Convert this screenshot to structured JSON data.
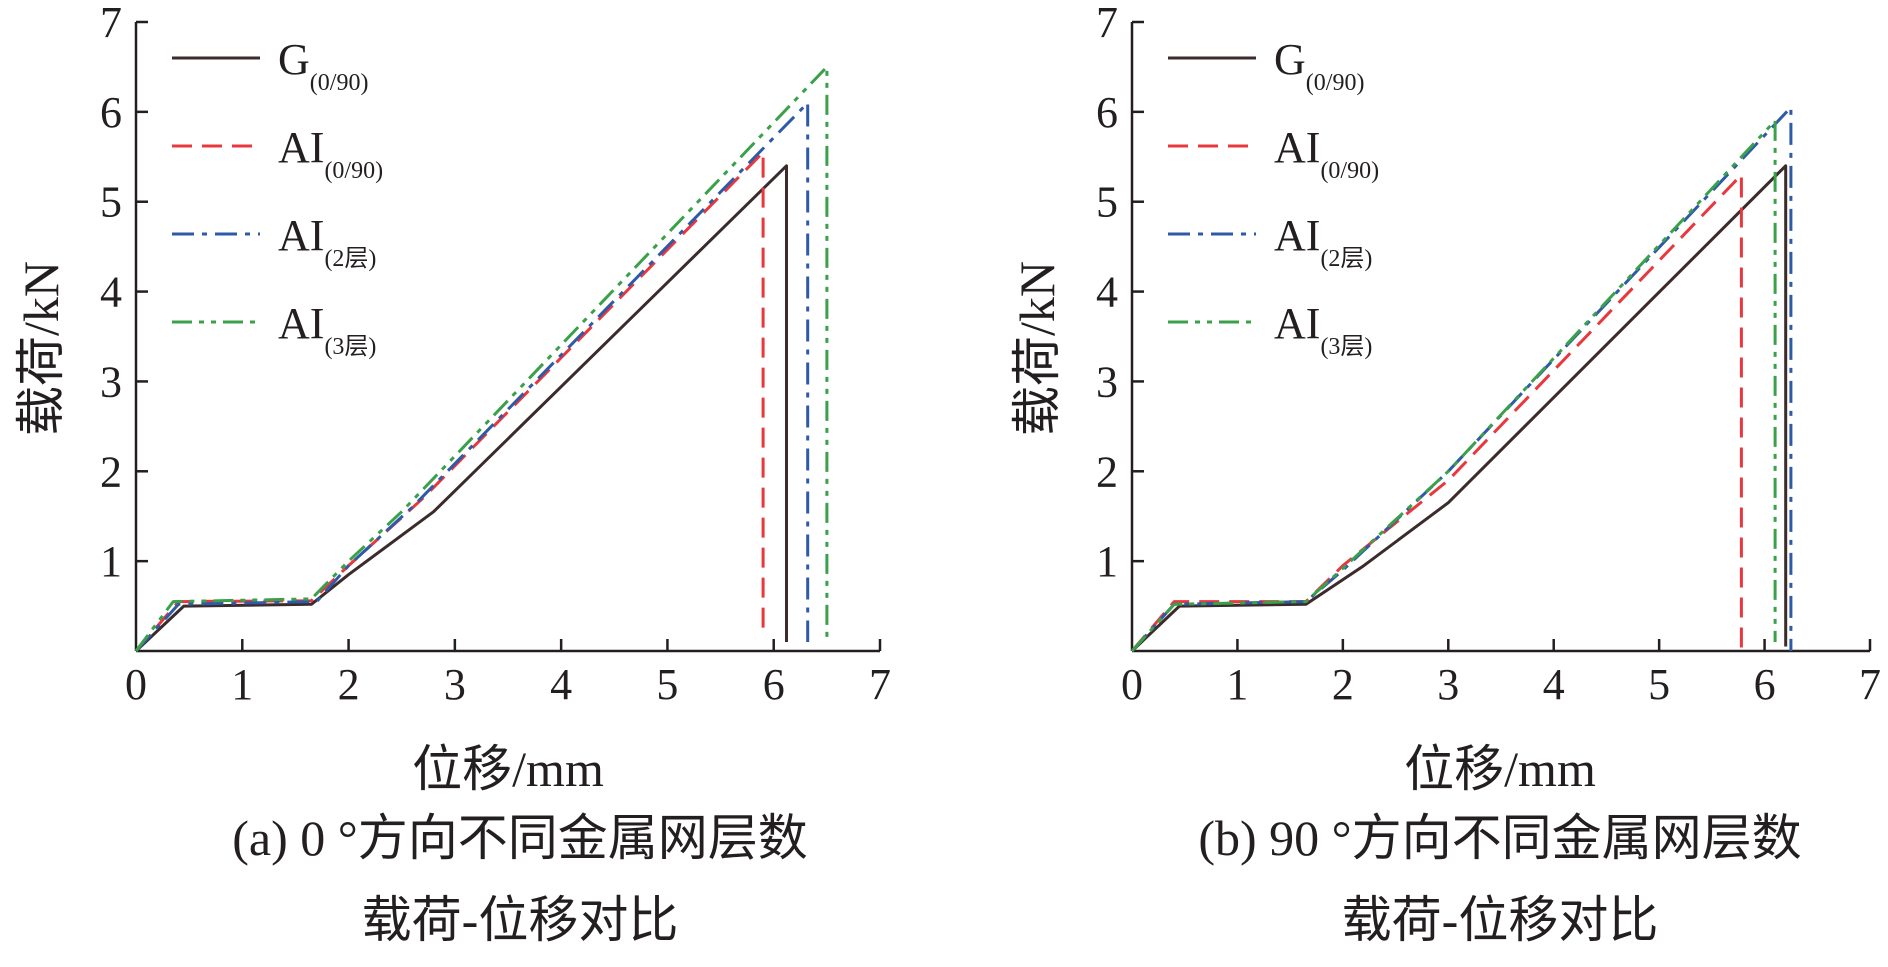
{
  "chart_data": [
    {
      "type": "line",
      "panel": "a",
      "caption_line1": "(a) 0 °方向不同金属网层数",
      "caption_line2": "载荷-位移对比",
      "xlabel": "位移/mm",
      "ylabel": "载荷/kN",
      "xlim": [
        0,
        7
      ],
      "ylim": [
        0,
        7
      ],
      "xticks": [
        "0",
        "1",
        "2",
        "3",
        "4",
        "5",
        "6",
        "7"
      ],
      "yticks": [
        "1",
        "2",
        "3",
        "4",
        "5",
        "6",
        "7"
      ],
      "legend": [
        {
          "main": "G",
          "sub": "(0/90)"
        },
        {
          "main": "AI",
          "sub": "(0/90)"
        },
        {
          "main": "AI",
          "sub": "(2层)"
        },
        {
          "main": "AI",
          "sub": "(3层)"
        }
      ],
      "series": [
        {
          "name": "G(0/90)",
          "color": "#3b2b2b",
          "dash": "solid",
          "x": [
            0,
            0.45,
            1.65,
            2.0,
            2.8,
            6.12,
            6.12
          ],
          "y": [
            0,
            0.5,
            0.52,
            0.85,
            1.55,
            5.4,
            0.1
          ]
        },
        {
          "name": "AI(0/90)",
          "color": "#e8383d",
          "dash": "dash",
          "x": [
            0,
            0.4,
            1.65,
            2.0,
            2.7,
            5.9,
            5.9
          ],
          "y": [
            0,
            0.55,
            0.56,
            0.95,
            1.7,
            5.55,
            0.2
          ]
        },
        {
          "name": "AI(2层)",
          "color": "#2e5aa8",
          "dash": "dashdot",
          "x": [
            0,
            0.4,
            1.7,
            2.0,
            2.6,
            6.32,
            6.32
          ],
          "y": [
            0,
            0.52,
            0.55,
            0.95,
            1.6,
            6.1,
            0.1
          ]
        },
        {
          "name": "AI(3层)",
          "color": "#3aa04a",
          "dash": "dashdotdot",
          "x": [
            0,
            0.35,
            1.65,
            2.0,
            2.5,
            6.5,
            6.5
          ],
          "y": [
            0,
            0.55,
            0.58,
            1.0,
            1.55,
            6.5,
            0.1
          ]
        }
      ]
    },
    {
      "type": "line",
      "panel": "b",
      "caption_line1": "(b) 90 °方向不同金属网层数",
      "caption_line2": "载荷-位移对比",
      "xlabel": "位移/mm",
      "ylabel": "载荷/kN",
      "xlim": [
        0,
        7
      ],
      "ylim": [
        0,
        7
      ],
      "xticks": [
        "0",
        "1",
        "2",
        "3",
        "4",
        "5",
        "6",
        "7"
      ],
      "yticks": [
        "1",
        "2",
        "3",
        "4",
        "5",
        "6",
        "7"
      ],
      "legend": [
        {
          "main": "G",
          "sub": "(0/90)"
        },
        {
          "main": "AI",
          "sub": "(0/90)"
        },
        {
          "main": "AI",
          "sub": "(2层)"
        },
        {
          "main": "AI",
          "sub": "(3层)"
        }
      ],
      "series": [
        {
          "name": "G(0/90)",
          "color": "#3b2b2b",
          "dash": "solid",
          "x": [
            0,
            0.45,
            1.65,
            2.2,
            3.0,
            6.2,
            6.2
          ],
          "y": [
            0,
            0.5,
            0.52,
            0.95,
            1.65,
            5.4,
            0.05
          ]
        },
        {
          "name": "AI(0/90)",
          "color": "#e8383d",
          "dash": "dash",
          "x": [
            0,
            0.4,
            1.65,
            2.0,
            3.0,
            5.78,
            5.78
          ],
          "y": [
            0,
            0.55,
            0.55,
            0.95,
            1.9,
            5.3,
            0.0
          ]
        },
        {
          "name": "AI(2层)",
          "color": "#2e5aa8",
          "dash": "dashdot",
          "x": [
            0,
            0.4,
            1.65,
            2.0,
            3.0,
            6.25,
            6.25
          ],
          "y": [
            0,
            0.52,
            0.55,
            0.9,
            2.0,
            6.05,
            0.0
          ]
        },
        {
          "name": "AI(3层)",
          "color": "#3aa04a",
          "dash": "dashdotdot",
          "x": [
            0,
            0.4,
            1.65,
            2.0,
            3.0,
            6.1,
            6.1
          ],
          "y": [
            0,
            0.52,
            0.55,
            0.92,
            2.0,
            5.9,
            0.1
          ]
        }
      ]
    }
  ]
}
